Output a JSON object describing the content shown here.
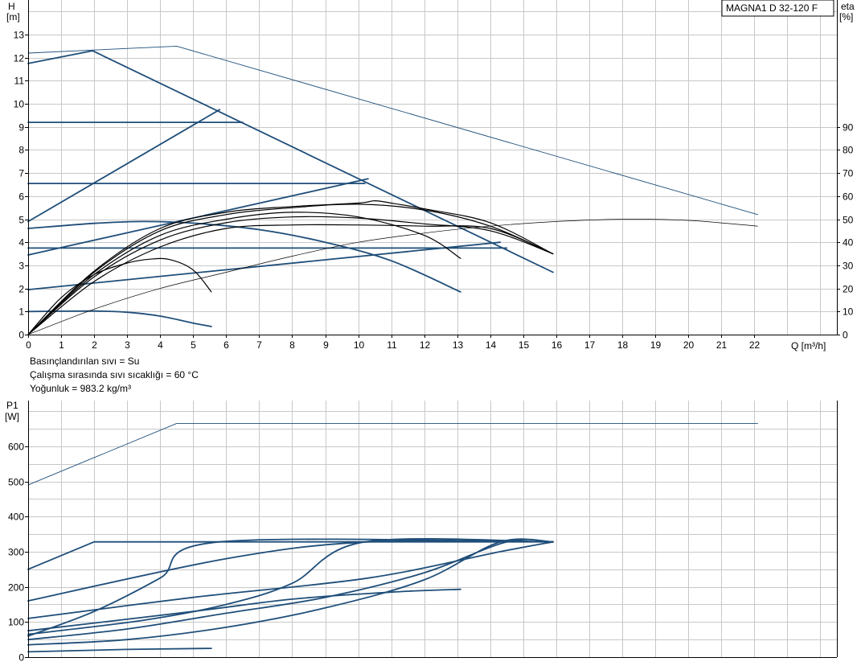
{
  "model_label": "MAGNA1 D 32-120 F",
  "info_lines": [
    "Basınçlandırılan sıvı = Su",
    "Çalışma sırasında sıvı sıcaklığı = 60 °C",
    "Yoğunluk = 983.2 kg/m³"
  ],
  "colors": {
    "blue": "#1f4e79",
    "black": "#000000",
    "grid": "#c8c8c8"
  },
  "chart_data": [
    {
      "type": "line",
      "title": "",
      "ylabel": "H",
      "yunit": "[m]",
      "y2label": "eta",
      "y2unit": "[%]",
      "xlabel": "Q [m³/h]",
      "xlim": [
        0,
        24.5
      ],
      "ylim": [
        0,
        14.5
      ],
      "y2lim": [
        0,
        145
      ],
      "x_ticks": [
        "0",
        "1",
        "2",
        "3",
        "4",
        "5",
        "6",
        "7",
        "8",
        "9",
        "10",
        "11",
        "12",
        "13",
        "14",
        "15",
        "16",
        "17",
        "18",
        "19",
        "20",
        "21",
        "22"
      ],
      "y_ticks": [
        "0",
        "1",
        "2",
        "3",
        "4",
        "5",
        "6",
        "7",
        "8",
        "9",
        "10",
        "11",
        "12",
        "13"
      ],
      "y2_ticks": [
        "0",
        "10",
        "20",
        "30",
        "40",
        "50",
        "60",
        "70",
        "80",
        "90"
      ],
      "grid": true,
      "series": [
        {
          "axis": "y",
          "color": "#1f4e79",
          "width": 1.8,
          "points": [
            [
              0,
              11.75
            ],
            [
              1.95,
              12.3
            ],
            [
              15.9,
              2.7
            ]
          ]
        },
        {
          "axis": "y",
          "color": "#1f4e79",
          "width": 0.9,
          "points": [
            [
              0,
              12.2
            ],
            [
              4.5,
              12.5
            ],
            [
              22.1,
              5.2
            ]
          ]
        },
        {
          "axis": "y",
          "color": "#1f4e79",
          "width": 1.8,
          "points": [
            [
              0,
              9.2
            ],
            [
              6.5,
              9.2
            ]
          ]
        },
        {
          "axis": "y",
          "color": "#1f4e79",
          "width": 1.8,
          "points": [
            [
              0,
              4.9
            ],
            [
              5.8,
              9.75
            ]
          ]
        },
        {
          "axis": "y",
          "color": "#1f4e79",
          "width": 1.8,
          "points": [
            [
              0,
              6.55
            ],
            [
              10.2,
              6.55
            ]
          ]
        },
        {
          "axis": "y",
          "color": "#1f4e79",
          "width": 1.8,
          "points": [
            [
              0,
              3.45
            ],
            [
              10.3,
              6.75
            ]
          ]
        },
        {
          "axis": "y",
          "color": "#1f4e79",
          "width": 1.8,
          "points": [
            [
              0,
              3.75
            ],
            [
              14.5,
              3.75
            ]
          ]
        },
        {
          "axis": "y",
          "color": "#1f4e79",
          "width": 1.8,
          "points": [
            [
              0,
              1.95
            ],
            [
              14.3,
              4.0
            ]
          ]
        },
        {
          "axis": "y",
          "color": "#1f4e79",
          "width": 1.8,
          "points": [
            [
              0,
              4.6
            ],
            [
              2,
              4.82
            ],
            [
              3.5,
              4.9
            ],
            [
              5,
              4.83
            ],
            [
              7,
              4.55
            ],
            [
              9,
              4.0
            ],
            [
              11,
              3.2
            ],
            [
              13.1,
              1.85
            ]
          ]
        },
        {
          "axis": "y",
          "color": "#1f4e79",
          "width": 1.8,
          "points": [
            [
              0,
              1.0
            ],
            [
              2,
              1.02
            ],
            [
              3,
              0.97
            ],
            [
              4,
              0.8
            ],
            [
              5,
              0.5
            ],
            [
              5.55,
              0.35
            ]
          ]
        },
        {
          "axis": "y",
          "color": "#000000",
          "width": 1.2,
          "points": [
            [
              0,
              0
            ],
            [
              1,
              1.6
            ],
            [
              2,
              2.6
            ],
            [
              3,
              3.1
            ],
            [
              3.7,
              3.27
            ],
            [
              4.3,
              3.25
            ],
            [
              5,
              2.8
            ],
            [
              5.55,
              1.85
            ]
          ]
        },
        {
          "axis": "y",
          "color": "#000000",
          "width": 1.2,
          "points": [
            [
              0,
              0
            ],
            [
              2,
              2.3
            ],
            [
              4,
              3.8
            ],
            [
              6,
              4.6
            ],
            [
              8,
              4.75
            ],
            [
              10,
              4.75
            ],
            [
              12,
              4.7
            ],
            [
              14,
              4.6
            ],
            [
              15.9,
              3.5
            ]
          ]
        },
        {
          "axis": "y",
          "color": "#000000",
          "width": 1.2,
          "points": [
            [
              0,
              0
            ],
            [
              2,
              2.5
            ],
            [
              4,
              4.1
            ],
            [
              6,
              4.85
            ],
            [
              8,
              5.1
            ],
            [
              10,
              5.05
            ],
            [
              12,
              4.8
            ],
            [
              14,
              4.5
            ],
            [
              15.9,
              3.5
            ]
          ]
        },
        {
          "axis": "y",
          "color": "#000000",
          "width": 1.2,
          "points": [
            [
              0,
              0
            ],
            [
              2,
              2.6
            ],
            [
              4,
              4.3
            ],
            [
              6,
              5.0
            ],
            [
              8,
              5.3
            ],
            [
              10,
              5.1
            ],
            [
              12,
              4.3
            ],
            [
              13.1,
              3.3
            ]
          ]
        },
        {
          "axis": "y",
          "color": "#000000",
          "width": 1.2,
          "points": [
            [
              0,
              0
            ],
            [
              2,
              2.7
            ],
            [
              4,
              4.5
            ],
            [
              6,
              5.2
            ],
            [
              8,
              5.5
            ],
            [
              10,
              5.65
            ],
            [
              12,
              5.4
            ],
            [
              14,
              4.7
            ],
            [
              15.9,
              3.5
            ]
          ]
        },
        {
          "axis": "y",
          "color": "#000000",
          "width": 1.2,
          "points": [
            [
              0,
              0
            ],
            [
              2,
              2.75
            ],
            [
              4,
              4.6
            ],
            [
              6,
              5.3
            ],
            [
              8,
              5.55
            ],
            [
              10,
              5.7
            ],
            [
              10.5,
              5.8
            ],
            [
              11,
              5.7
            ],
            [
              12,
              5.45
            ],
            [
              14,
              4.85
            ],
            [
              15.9,
              3.5
            ]
          ]
        },
        {
          "axis": "y2",
          "color": "#000000",
          "width": 0.7,
          "points": [
            [
              0,
              0
            ],
            [
              2,
              11
            ],
            [
              4,
              20
            ],
            [
              6,
              27
            ],
            [
              8,
              34
            ],
            [
              10,
              40
            ],
            [
              12,
              44
            ],
            [
              14,
              47
            ],
            [
              16,
              49
            ],
            [
              18,
              50
            ],
            [
              20,
              49.5
            ],
            [
              22.1,
              47
            ]
          ]
        }
      ]
    },
    {
      "type": "line",
      "title": "",
      "ylabel": "P1",
      "yunit": "[W]",
      "xlim": [
        0,
        24.5
      ],
      "ylim": [
        0,
        730
      ],
      "y_ticks": [
        "0",
        "100",
        "200",
        "300",
        "400",
        "500",
        "600"
      ],
      "grid": true,
      "series": [
        {
          "color": "#1f4e79",
          "width": 0.9,
          "points": [
            [
              0,
              490
            ],
            [
              4.5,
              665
            ],
            [
              22.1,
              665
            ]
          ]
        },
        {
          "color": "#1f4e79",
          "width": 1.8,
          "points": [
            [
              0,
              250
            ],
            [
              2,
              328
            ],
            [
              15.9,
              328
            ]
          ]
        },
        {
          "color": "#1f4e79",
          "width": 1.8,
          "points": [
            [
              0,
              160
            ],
            [
              6,
              280
            ],
            [
              10.3,
              328
            ],
            [
              15.9,
              328
            ]
          ]
        },
        {
          "color": "#1f4e79",
          "width": 1.8,
          "points": [
            [
              0,
              110
            ],
            [
              5,
              170
            ],
            [
              10.3,
              225
            ],
            [
              14.3,
              300
            ],
            [
              15.9,
              328
            ]
          ]
        },
        {
          "color": "#1f4e79",
          "width": 1.8,
          "points": [
            [
              0,
              75
            ],
            [
              5,
              130
            ],
            [
              8,
              165
            ],
            [
              11,
              185
            ],
            [
              13.1,
              193
            ]
          ]
        },
        {
          "color": "#1f4e79",
          "width": 1.8,
          "points": [
            [
              0,
              60
            ],
            [
              2,
              130
            ],
            [
              4,
              225
            ],
            [
              5.8,
              328
            ],
            [
              15.9,
              328
            ]
          ]
        },
        {
          "color": "#1f4e79",
          "width": 1.8,
          "points": [
            [
              0,
              65
            ],
            [
              3.5,
              105
            ],
            [
              6,
              150
            ],
            [
              8,
              210
            ],
            [
              10.2,
              328
            ],
            [
              15.9,
              328
            ]
          ]
        },
        {
          "color": "#1f4e79",
          "width": 1.8,
          "points": [
            [
              0,
              50
            ],
            [
              3,
              80
            ],
            [
              6,
              125
            ],
            [
              9,
              170
            ],
            [
              12,
              240
            ],
            [
              14.5,
              328
            ],
            [
              15.9,
              328
            ]
          ]
        },
        {
          "color": "#1f4e79",
          "width": 1.8,
          "points": [
            [
              0,
              35
            ],
            [
              3,
              50
            ],
            [
              6,
              85
            ],
            [
              9,
              140
            ],
            [
              12,
              220
            ],
            [
              14.3,
              328
            ],
            [
              15.9,
              328
            ]
          ]
        },
        {
          "color": "#1f4e79",
          "width": 1.8,
          "points": [
            [
              0,
              15
            ],
            [
              3,
              22
            ],
            [
              5.55,
              25
            ]
          ]
        }
      ]
    }
  ]
}
